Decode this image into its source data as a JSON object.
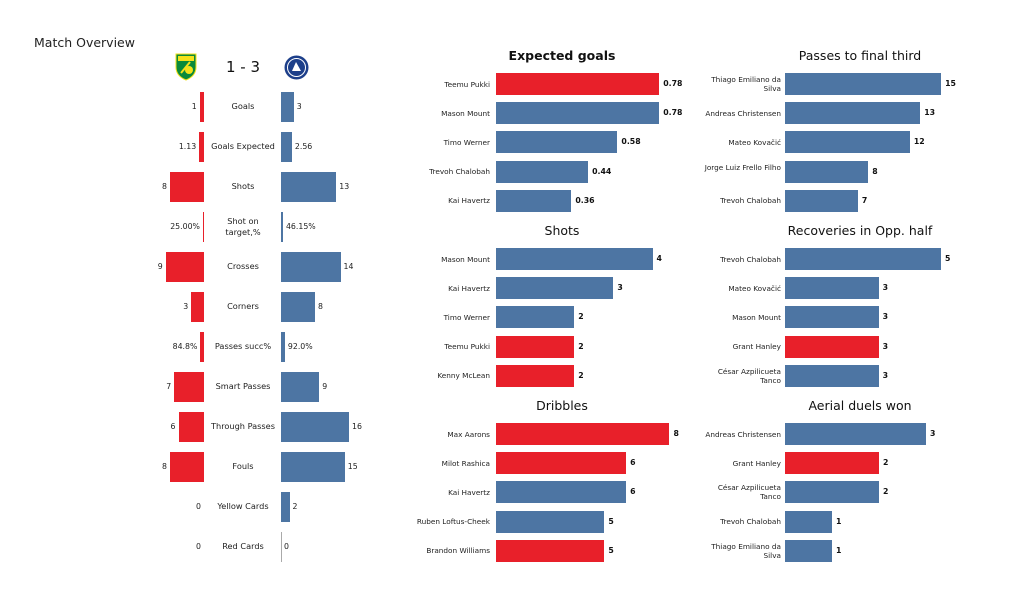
{
  "title": "Match Overview",
  "score": "1 - 3",
  "colors": {
    "home": "#e8202a",
    "away": "#4d75a3"
  },
  "logos": {
    "home": "norwich-city-crest",
    "away": "chelsea-crest"
  },
  "chart_data": [
    {
      "type": "bar",
      "orientation": "diverging-horizontal",
      "title": "Match Overview",
      "categories": [
        "Goals",
        "Goals Expected",
        "Shots",
        "Shot on target,%",
        "Crosses",
        "Corners",
        "Passes succ%",
        "Smart Passes",
        "Through Passes",
        "Fouls",
        "Yellow Cards",
        "Red Cards"
      ],
      "series": [
        {
          "team": "home",
          "values": [
            1,
            1.13,
            8,
            25.0,
            9,
            3,
            84.8,
            7,
            6,
            8,
            0,
            0
          ],
          "labels": [
            "1",
            "1.13",
            "8",
            "25.00%",
            "9",
            "3",
            "84.8%",
            "7",
            "6",
            "8",
            "0",
            "0"
          ]
        },
        {
          "team": "away",
          "values": [
            3,
            2.56,
            13,
            46.15,
            14,
            8,
            92.0,
            9,
            16,
            15,
            2,
            0
          ],
          "labels": [
            "3",
            "2.56",
            "13",
            "46.15%",
            "14",
            "8",
            "92.0%",
            "9",
            "16",
            "15",
            "2",
            "0"
          ]
        }
      ],
      "percent_rows": [
        3,
        6
      ]
    },
    {
      "type": "bar",
      "title": "Expected goals",
      "bold_title": true,
      "xlim": [
        0,
        0.86
      ],
      "categories": [
        "Teemu Pukki",
        "Mason Mount",
        "Timo Werner",
        "Trevoh Chalobah",
        "Kai Havertz"
      ],
      "values": [
        0.78,
        0.78,
        0.58,
        0.44,
        0.36
      ],
      "labels": [
        "0.78",
        "0.78",
        "0.58",
        "0.44",
        "0.36"
      ],
      "teams": [
        "home",
        "away",
        "away",
        "away",
        "away"
      ]
    },
    {
      "type": "bar",
      "title": "Passes to final third",
      "xlim": [
        0,
        17.3
      ],
      "categories": [
        "Thiago Emiliano da Silva",
        "Andreas Christensen",
        "Mateo Kovačić",
        "Jorge Luiz Frello Filho",
        "Trevoh Chalobah"
      ],
      "values": [
        15,
        13,
        12,
        8,
        7
      ],
      "labels": [
        "15",
        "13",
        "12",
        "8",
        "7"
      ],
      "teams": [
        "away",
        "away",
        "away",
        "away",
        "away"
      ]
    },
    {
      "type": "bar",
      "title": "Shots",
      "xlim": [
        0,
        4.6
      ],
      "categories": [
        "Mason Mount",
        "Kai Havertz",
        "Timo Werner",
        "Teemu Pukki",
        "Kenny McLean"
      ],
      "values": [
        4,
        3,
        2,
        2,
        2
      ],
      "labels": [
        "4",
        "3",
        "2",
        "2",
        "2"
      ],
      "teams": [
        "away",
        "away",
        "away",
        "home",
        "home"
      ]
    },
    {
      "type": "bar",
      "title": "Recoveries in Opp. half",
      "xlim": [
        0,
        5.77
      ],
      "categories": [
        "Trevoh Chalobah",
        "Mateo Kovačić",
        "Mason Mount",
        "Grant Hanley",
        "César Azpilicueta Tanco"
      ],
      "values": [
        5,
        3,
        3,
        3,
        3
      ],
      "labels": [
        "5",
        "3",
        "3",
        "3",
        "3"
      ],
      "teams": [
        "away",
        "away",
        "away",
        "home",
        "away"
      ]
    },
    {
      "type": "bar",
      "title": "Dribbles",
      "xlim": [
        0,
        8.3
      ],
      "categories": [
        "Max Aarons",
        "Milot Rashica",
        "Kai Havertz",
        "Ruben Loftus-Cheek",
        "Brandon Williams"
      ],
      "values": [
        8,
        6,
        6,
        5,
        5
      ],
      "labels": [
        "8",
        "6",
        "6",
        "5",
        "5"
      ],
      "teams": [
        "home",
        "home",
        "away",
        "away",
        "home"
      ]
    },
    {
      "type": "bar",
      "title": "Aerial duels won",
      "xlim": [
        0,
        3.83
      ],
      "categories": [
        "Andreas Christensen",
        "Grant Hanley",
        "César Azpilicueta Tanco",
        "Trevoh Chalobah",
        "Thiago Emiliano da Silva"
      ],
      "values": [
        3,
        2,
        2,
        1,
        1
      ],
      "labels": [
        "3",
        "2",
        "2",
        "1",
        "1"
      ],
      "teams": [
        "away",
        "home",
        "away",
        "away",
        "away"
      ]
    }
  ]
}
